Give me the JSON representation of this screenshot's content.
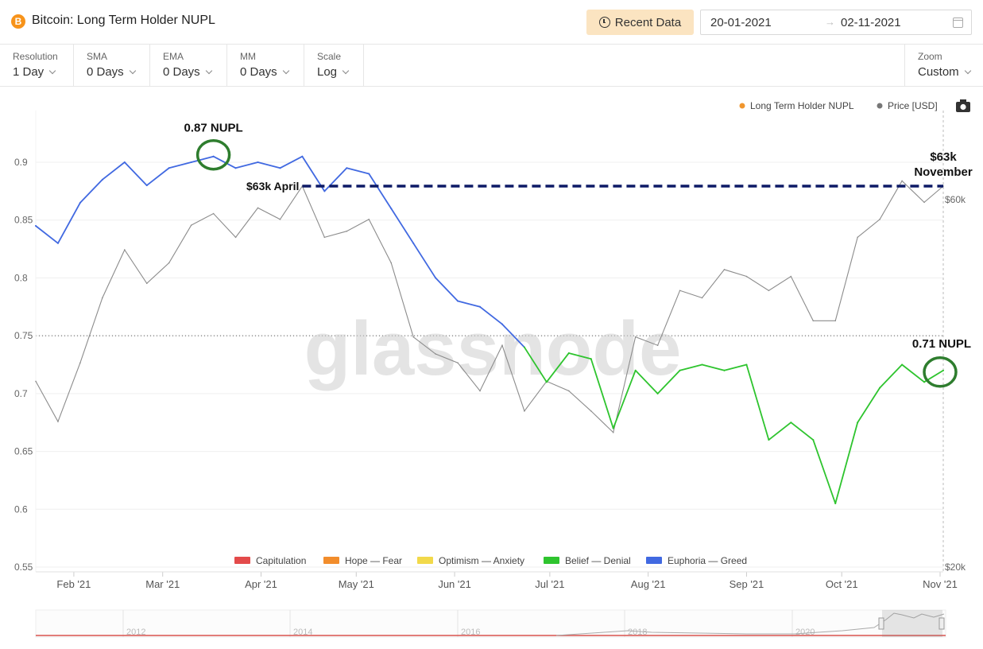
{
  "header": {
    "logo_glyph": "B",
    "title": "Bitcoin: Long Term Holder NUPL",
    "recent_label": "Recent Data",
    "date_start": "20-01-2021",
    "date_arrow": "→",
    "date_end": "02-11-2021"
  },
  "controls": [
    {
      "label": "Resolution",
      "value": "1 Day"
    },
    {
      "label": "SMA",
      "value": "0 Days"
    },
    {
      "label": "EMA",
      "value": "0 Days"
    },
    {
      "label": "MM",
      "value": "0 Days"
    },
    {
      "label": "Scale",
      "value": "Log"
    }
  ],
  "zoom": {
    "label": "Zoom",
    "value": "Custom"
  },
  "icons": {
    "camera": "camera-icon",
    "calendar": "calendar-icon",
    "clock": "clock-icon",
    "logo": "bitcoin-logo-icon"
  },
  "chart_data": {
    "type": "line",
    "watermark": "glassnode",
    "y_left": {
      "ticks": [
        "0.9",
        "0.85",
        "0.8",
        "0.75",
        "0.7",
        "0.65",
        "0.6",
        "0.55"
      ],
      "range": [
        0.55,
        0.92
      ]
    },
    "y_right": {
      "ticks": [
        "$60k",
        "$20k"
      ],
      "scale": "log"
    },
    "x_ticks": [
      "Feb '21",
      "Mar '21",
      "Apr '21",
      "May '21",
      "Jun '21",
      "Jul '21",
      "Aug '21",
      "Sep '21",
      "Oct '21",
      "Nov '21"
    ],
    "legend_top": [
      {
        "name": "Long Term Holder NUPL",
        "color": "#f0962e"
      },
      {
        "name": "Price [USD]",
        "color": "#777777"
      }
    ],
    "legend_bottom": [
      {
        "name": "Capitulation",
        "color": "#e34a4a"
      },
      {
        "name": "Hope — Fear",
        "color": "#f28d2c"
      },
      {
        "name": "Optimism — Anxiety",
        "color": "#f2d94a"
      },
      {
        "name": "Belief — Denial",
        "color": "#2ec42e"
      },
      {
        "name": "Euphoria — Greed",
        "color": "#4169e1"
      }
    ],
    "series": [
      {
        "name": "Long Term Holder NUPL",
        "x": [
          "2021-01-20",
          "2021-01-27",
          "2021-02-03",
          "2021-02-10",
          "2021-02-17",
          "2021-02-24",
          "2021-03-03",
          "2021-03-10",
          "2021-03-17",
          "2021-03-24",
          "2021-03-31",
          "2021-04-07",
          "2021-04-14",
          "2021-04-21",
          "2021-04-28",
          "2021-05-05",
          "2021-05-12",
          "2021-05-19",
          "2021-05-26",
          "2021-06-02",
          "2021-06-09",
          "2021-06-16",
          "2021-06-23",
          "2021-06-30",
          "2021-07-07",
          "2021-07-14",
          "2021-07-21",
          "2021-07-28",
          "2021-08-04",
          "2021-08-11",
          "2021-08-18",
          "2021-08-25",
          "2021-09-01",
          "2021-09-08",
          "2021-09-15",
          "2021-09-22",
          "2021-09-29",
          "2021-10-06",
          "2021-10-13",
          "2021-10-20",
          "2021-10-27",
          "2021-11-02"
        ],
        "values": [
          0.845,
          0.83,
          0.865,
          0.885,
          0.9,
          0.88,
          0.895,
          0.9,
          0.905,
          0.895,
          0.9,
          0.895,
          0.905,
          0.875,
          0.895,
          0.89,
          0.86,
          0.83,
          0.8,
          0.78,
          0.775,
          0.76,
          0.74,
          0.71,
          0.735,
          0.73,
          0.67,
          0.72,
          0.7,
          0.72,
          0.725,
          0.72,
          0.725,
          0.66,
          0.675,
          0.66,
          0.605,
          0.675,
          0.705,
          0.725,
          0.71,
          0.72
        ]
      },
      {
        "name": "Price [USD]",
        "x": [
          "2021-01-20",
          "2021-01-27",
          "2021-02-03",
          "2021-02-10",
          "2021-02-17",
          "2021-02-24",
          "2021-03-03",
          "2021-03-10",
          "2021-03-17",
          "2021-03-24",
          "2021-03-31",
          "2021-04-07",
          "2021-04-14",
          "2021-04-21",
          "2021-04-28",
          "2021-05-05",
          "2021-05-12",
          "2021-05-19",
          "2021-05-26",
          "2021-06-02",
          "2021-06-09",
          "2021-06-16",
          "2021-06-23",
          "2021-06-30",
          "2021-07-07",
          "2021-07-14",
          "2021-07-21",
          "2021-07-28",
          "2021-08-04",
          "2021-08-11",
          "2021-08-18",
          "2021-08-25",
          "2021-09-01",
          "2021-09-08",
          "2021-09-15",
          "2021-09-22",
          "2021-09-29",
          "2021-10-06",
          "2021-10-13",
          "2021-10-20",
          "2021-10-27",
          "2021-11-02"
        ],
        "values": [
          35000,
          31000,
          37000,
          45000,
          52000,
          47000,
          50000,
          56000,
          58000,
          54000,
          59000,
          57000,
          63000,
          54000,
          55000,
          57000,
          50000,
          40000,
          38000,
          37000,
          34000,
          39000,
          32000,
          35000,
          34000,
          32000,
          30000,
          40000,
          39000,
          46000,
          45000,
          49000,
          48000,
          46000,
          48000,
          42000,
          42000,
          54000,
          57000,
          64000,
          60000,
          63000
        ]
      }
    ],
    "annotations": [
      {
        "text": "0.87 NUPL"
      },
      {
        "text": "$63k April"
      },
      {
        "text": "$63k"
      },
      {
        "text": "November"
      },
      {
        "text": "0.71 NUPL"
      }
    ],
    "navigator": {
      "labels": [
        "2012",
        "2014",
        "2016",
        "2018",
        "2020"
      ]
    }
  }
}
